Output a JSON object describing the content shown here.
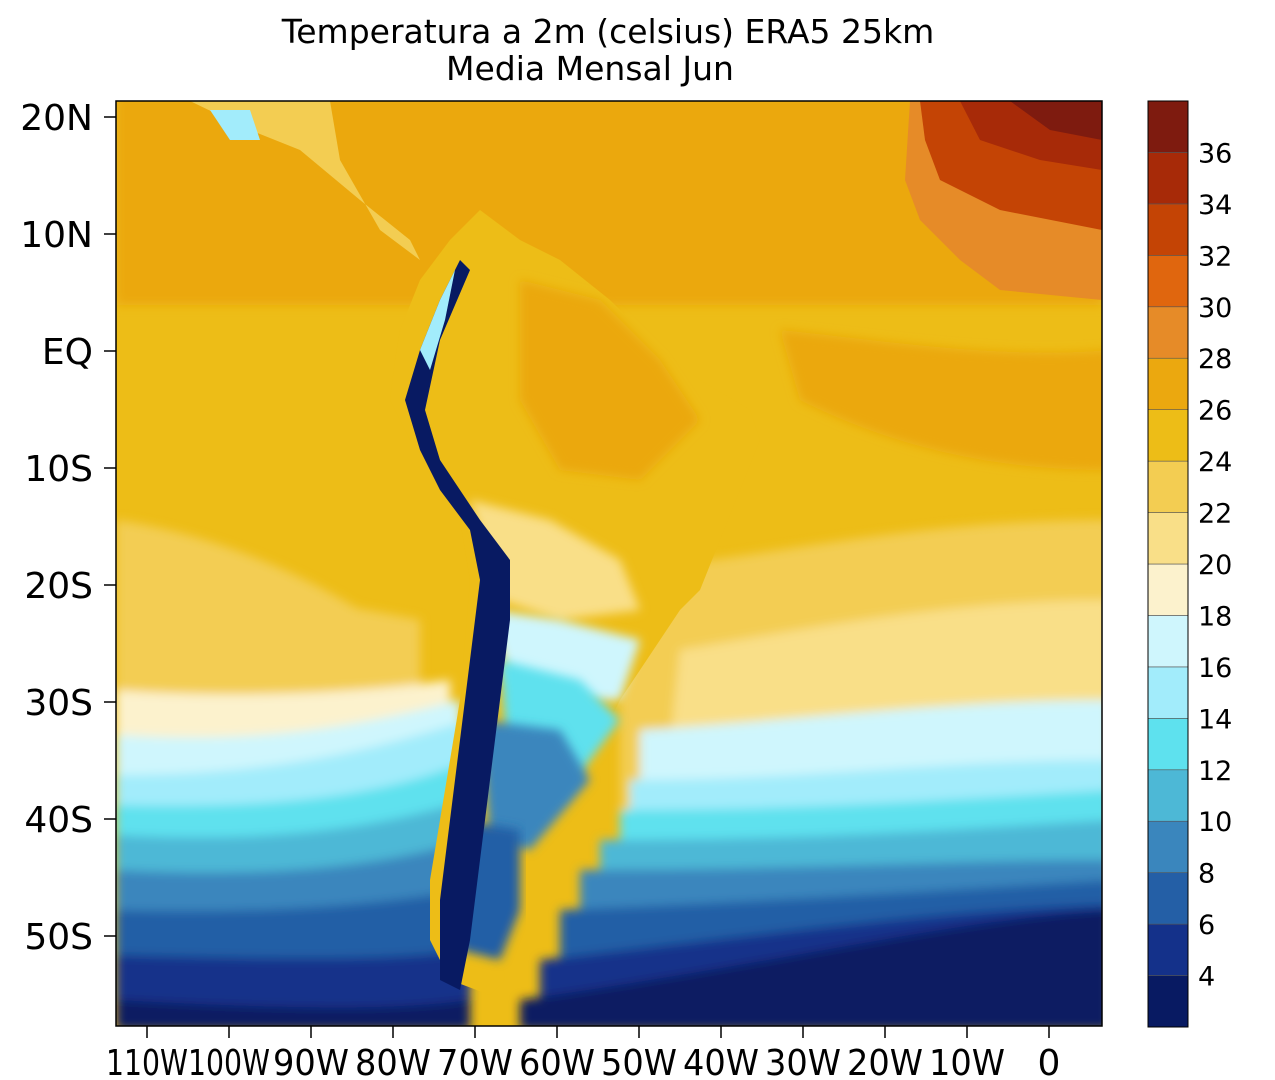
{
  "title": {
    "line1": "Temperatura a 2m (celsius) ERA5  25km",
    "line2": "Media Mensal Jun"
  },
  "map": {
    "lat_labels": [
      "20N",
      "10N",
      "EQ",
      "10S",
      "20S",
      "30S",
      "40S",
      "50S"
    ],
    "lon_labels": [
      "110W",
      "100W",
      "90W",
      "80W",
      "70W",
      "60W",
      "50W",
      "40W",
      "30W",
      "20W",
      "10W",
      "0"
    ]
  },
  "colorbar": {
    "colors": [
      "#081a62",
      "#14318a",
      "#245fa6",
      "#3a86bd",
      "#4db8d6",
      "#5ee1ee",
      "#a2ecfb",
      "#cff6fd",
      "#fcf2cd",
      "#f9df88",
      "#f3cd52",
      "#edbd17",
      "#eba80f",
      "#e68b28",
      "#e0660e",
      "#c44405",
      "#a72a08",
      "#7e1b0f"
    ],
    "labels": [
      "4",
      "6",
      "8",
      "10",
      "12",
      "14",
      "16",
      "18",
      "20",
      "22",
      "24",
      "26",
      "28",
      "30",
      "32",
      "34",
      "36"
    ]
  }
}
